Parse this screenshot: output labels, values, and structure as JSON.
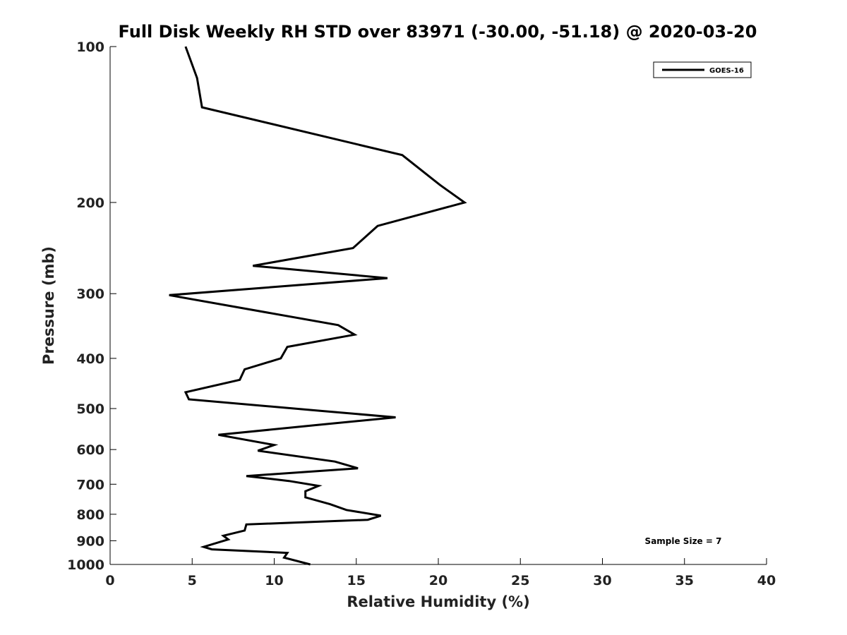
{
  "chart_data": {
    "type": "line",
    "title": "Full Disk Weekly RH STD over 83971 (-30.00, -51.18) @ 2020-03-20",
    "xlabel": "Relative Humidity (%)",
    "ylabel": "Pressure (mb)",
    "xlim": [
      0,
      40
    ],
    "ylim": [
      1000,
      100
    ],
    "y_scale": "log",
    "y_reversed": true,
    "grid": false,
    "legend_position": "top-right",
    "x_ticks": [
      "0",
      "5",
      "10",
      "15",
      "20",
      "25",
      "30",
      "35",
      "40"
    ],
    "y_ticks": [
      "100",
      "200",
      "300",
      "400",
      "500",
      "600",
      "700",
      "800",
      "900",
      "1000"
    ],
    "series": [
      {
        "name": "GOES-16",
        "color": "#000000",
        "points": [
          [
            4.6,
            100
          ],
          [
            5.3,
            115
          ],
          [
            5.6,
            131
          ],
          [
            17.8,
            162
          ],
          [
            20.1,
            185
          ],
          [
            21.6,
            200
          ],
          [
            16.3,
            222
          ],
          [
            14.8,
            245
          ],
          [
            8.7,
            265
          ],
          [
            16.9,
            280
          ],
          [
            3.6,
            302
          ],
          [
            13.9,
            345
          ],
          [
            14.9,
            360
          ],
          [
            10.8,
            380
          ],
          [
            10.4,
            400
          ],
          [
            8.2,
            420
          ],
          [
            7.9,
            440
          ],
          [
            4.6,
            465
          ],
          [
            4.8,
            480
          ],
          [
            12.8,
            505
          ],
          [
            17.4,
            520
          ],
          [
            12.6,
            538
          ],
          [
            6.6,
            562
          ],
          [
            10.0,
            588
          ],
          [
            9.0,
            603
          ],
          [
            13.7,
            633
          ],
          [
            15.1,
            652
          ],
          [
            8.3,
            675
          ],
          [
            10.9,
            690
          ],
          [
            12.7,
            705
          ],
          [
            11.9,
            722
          ],
          [
            11.9,
            742
          ],
          [
            13.4,
            765
          ],
          [
            14.4,
            785
          ],
          [
            16.5,
            805
          ],
          [
            15.7,
            820
          ],
          [
            8.3,
            837
          ],
          [
            8.2,
            860
          ],
          [
            6.9,
            880
          ],
          [
            7.2,
            895
          ],
          [
            5.7,
            925
          ],
          [
            6.2,
            935
          ],
          [
            10.8,
            950
          ],
          [
            10.6,
            970
          ],
          [
            12.2,
            1000
          ]
        ]
      }
    ],
    "annotations": [
      "Sample Size = 7"
    ]
  }
}
